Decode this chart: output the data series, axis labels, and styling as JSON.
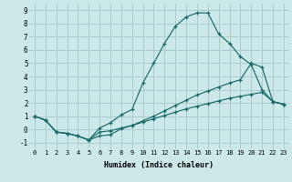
{
  "xlabel": "Humidex (Indice chaleur)",
  "xlim": [
    -0.5,
    23.5
  ],
  "ylim": [
    -1.5,
    9.5
  ],
  "xticks": [
    0,
    1,
    2,
    3,
    4,
    5,
    6,
    7,
    8,
    9,
    10,
    11,
    12,
    13,
    14,
    15,
    16,
    17,
    18,
    19,
    20,
    21,
    22,
    23
  ],
  "yticks": [
    -1,
    0,
    1,
    2,
    3,
    4,
    5,
    6,
    7,
    8,
    9
  ],
  "bg_color": "#cde8e8",
  "grid_color": "#aacccc",
  "line_color": "#1a6b6b",
  "line1_x": [
    0,
    1,
    2,
    3,
    4,
    5,
    6,
    7,
    8,
    9,
    10,
    11,
    12,
    13,
    14,
    15,
    16,
    17,
    18,
    19,
    20,
    21,
    22,
    23
  ],
  "line1_y": [
    1,
    0.7,
    -0.2,
    -0.3,
    -0.5,
    -0.8,
    0.1,
    0.5,
    1.1,
    1.5,
    3.5,
    5.0,
    6.5,
    7.8,
    8.5,
    8.8,
    8.8,
    7.2,
    6.5,
    5.5,
    4.9,
    3.0,
    2.1,
    1.9
  ],
  "line2_x": [
    0,
    1,
    2,
    3,
    4,
    5,
    6,
    7,
    8,
    9,
    10,
    11,
    12,
    13,
    14,
    15,
    16,
    17,
    18,
    19,
    20,
    21,
    22,
    23
  ],
  "line2_y": [
    1,
    0.7,
    -0.2,
    -0.3,
    -0.5,
    -0.8,
    -0.5,
    -0.4,
    0.05,
    0.3,
    0.65,
    1.0,
    1.4,
    1.8,
    2.2,
    2.6,
    2.9,
    3.2,
    3.5,
    3.75,
    5.0,
    4.7,
    2.1,
    1.9
  ],
  "line3_x": [
    0,
    1,
    2,
    3,
    4,
    5,
    6,
    7,
    8,
    9,
    10,
    11,
    12,
    13,
    14,
    15,
    16,
    17,
    18,
    19,
    20,
    21,
    22,
    23
  ],
  "line3_y": [
    1,
    0.7,
    -0.2,
    -0.3,
    -0.5,
    -0.8,
    -0.2,
    -0.1,
    0.1,
    0.3,
    0.55,
    0.8,
    1.05,
    1.3,
    1.55,
    1.75,
    1.95,
    2.15,
    2.35,
    2.5,
    2.65,
    2.8,
    2.1,
    1.9
  ]
}
